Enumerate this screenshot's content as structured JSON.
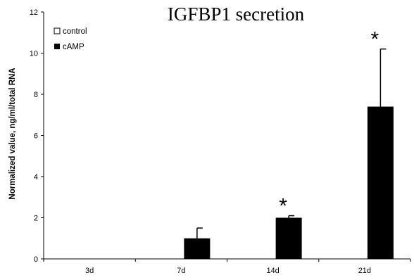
{
  "chart_data": {
    "type": "bar",
    "title": "IGFBP1 secretion",
    "xlabel": "",
    "ylabel": "Normalized value, ng/ml/total RNA",
    "ylim": [
      0,
      12
    ],
    "yticks": [
      "0",
      "2",
      "4",
      "6",
      "8",
      "10",
      "12"
    ],
    "categories": [
      "3d",
      "7d",
      "14d",
      "21d"
    ],
    "series": [
      {
        "name": "control",
        "values": [
          0,
          0,
          0,
          0
        ],
        "errors": [
          0,
          0,
          0,
          0
        ],
        "color": "#ffffff"
      },
      {
        "name": "cAMP",
        "values": [
          0,
          1.0,
          2.0,
          7.4
        ],
        "errors": [
          0,
          0.5,
          0.1,
          2.8
        ],
        "color": "#000000"
      }
    ],
    "significance": [
      "",
      "",
      "*",
      "*"
    ],
    "legend": [
      "control",
      "cAMP"
    ],
    "legend_position": "top-left",
    "grid": false
  }
}
